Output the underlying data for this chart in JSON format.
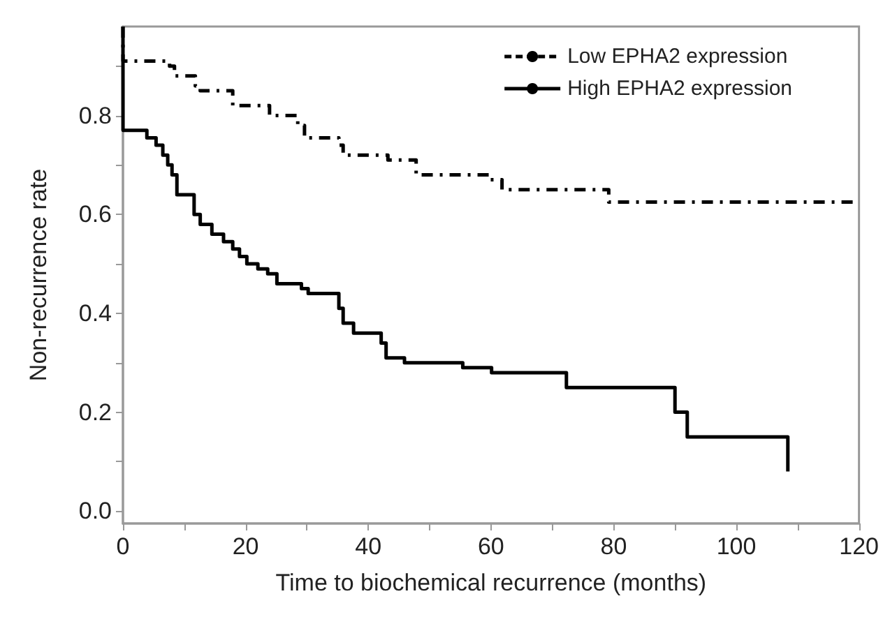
{
  "chart_data": {
    "type": "step",
    "xlabel": "Time to biochemical recurrence (months)",
    "ylabel": "Non-recurrence rate",
    "xlim": [
      0,
      120
    ],
    "xticks": [
      0,
      {
        "value": 10,
        "label": null
      },
      20,
      {
        "value": 30,
        "label": null
      },
      40,
      {
        "value": 50,
        "label": null
      },
      60,
      {
        "value": 70,
        "label": null
      },
      80,
      {
        "value": 90,
        "label": null
      },
      100,
      {
        "value": 110,
        "label": null
      },
      120
    ],
    "ylim": [
      -0.025,
      0.98
    ],
    "yticks": [
      {
        "value": 0,
        "label": "0.0"
      },
      {
        "value": 0.1,
        "label": null
      },
      0.2,
      {
        "value": 0.3,
        "label": null
      },
      0.4,
      {
        "value": 0.5,
        "label": null
      },
      0.6,
      {
        "value": 0.7,
        "label": null
      },
      0.8,
      {
        "value": 0.9,
        "label": null
      }
    ],
    "grid": false,
    "legend": "top right",
    "marker": "none",
    "series": [
      {
        "name": "Low EPHA2 expression",
        "color": "#000000",
        "line_style": "dashed",
        "x": [
          0,
          0.01,
          7.6,
          8.4,
          11.8,
          12.6,
          17.9,
          23.9,
          28.5,
          29.6,
          35.2,
          35.9,
          43.2,
          47.8,
          59.9,
          61.8,
          79.2,
          120
        ],
        "values": [
          0.98,
          0.91,
          0.9,
          0.88,
          0.86,
          0.85,
          0.82,
          0.8,
          0.78,
          0.755,
          0.74,
          0.72,
          0.71,
          0.68,
          0.67,
          0.65,
          0.625,
          0.625
        ]
      },
      {
        "name": "High EPHA2 expression",
        "color": "#000000",
        "line_style": "solid",
        "x": [
          0,
          0.01,
          3.9,
          5.4,
          6.5,
          7.3,
          8,
          8.8,
          11.6,
          12.6,
          14.5,
          16.4,
          17.9,
          19,
          20.2,
          22,
          23.6,
          25.1,
          29.1,
          30.2,
          35.2,
          35.9,
          37.6,
          42.1,
          42.9,
          45.9,
          55.4,
          60.1,
          72.3,
          90,
          92,
          108.4
        ],
        "values": [
          0.98,
          0.77,
          0.755,
          0.74,
          0.72,
          0.7,
          0.68,
          0.64,
          0.6,
          0.58,
          0.56,
          0.545,
          0.53,
          0.515,
          0.5,
          0.49,
          0.48,
          0.46,
          0.45,
          0.44,
          0.41,
          0.38,
          0.36,
          0.34,
          0.31,
          0.3,
          0.29,
          0.28,
          0.25,
          0.2,
          0.15,
          0.08
        ]
      }
    ]
  }
}
